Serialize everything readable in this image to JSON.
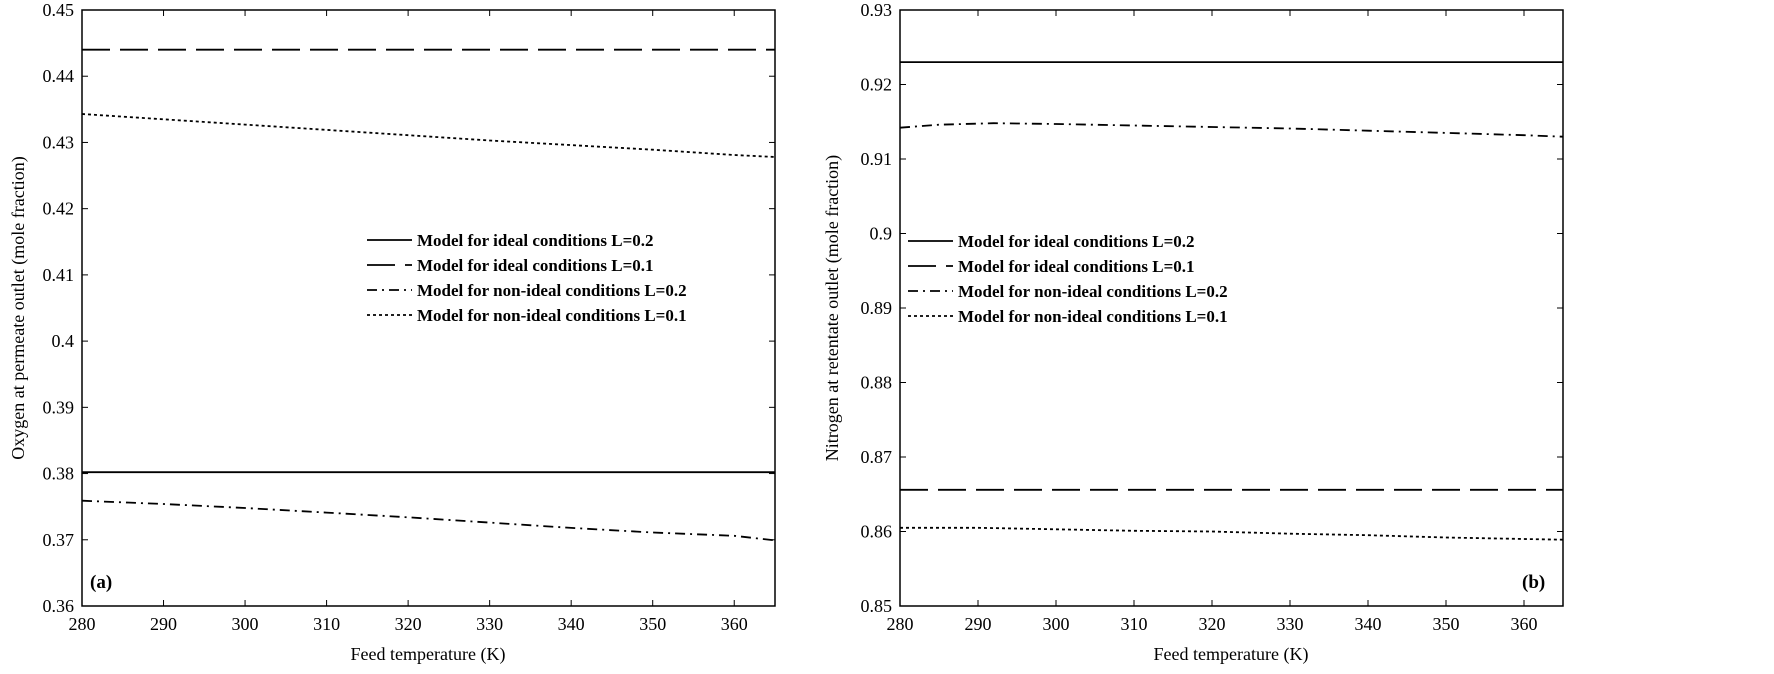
{
  "chart_data": [
    {
      "type": "line",
      "panel_label": "(a)",
      "xlabel": "Feed temperature (K)",
      "ylabel": "Oxygen at permeate outlet (mole fraction)",
      "xlim": [
        280,
        365
      ],
      "ylim": [
        0.36,
        0.45
      ],
      "xticks": [
        280,
        290,
        300,
        310,
        320,
        330,
        340,
        350,
        360
      ],
      "yticks": [
        0.36,
        0.37,
        0.38,
        0.39,
        0.4,
        0.41,
        0.42,
        0.43,
        0.44,
        0.45
      ],
      "xtick_labels": [
        "280",
        "290",
        "300",
        "310",
        "320",
        "330",
        "340",
        "350",
        "360"
      ],
      "ytick_labels": [
        "0.36",
        "0.37",
        "0.38",
        "0.39",
        "0.4",
        "0.41",
        "0.42",
        "0.43",
        "0.44",
        "0.45"
      ],
      "grid": false,
      "legend_position": "center-right",
      "series": [
        {
          "name": "Model for ideal conditions L=0.2",
          "style": "solid",
          "x": [
            280,
            365
          ],
          "y": [
            0.3802,
            0.3802
          ]
        },
        {
          "name": "Model for ideal conditions L=0.1",
          "style": "dashed",
          "x": [
            280,
            365
          ],
          "y": [
            0.444,
            0.444
          ]
        },
        {
          "name": "Model for non-ideal conditions L=0.2",
          "style": "dashdot",
          "x": [
            280,
            290,
            300,
            310,
            320,
            330,
            340,
            350,
            360,
            365
          ],
          "y": [
            0.3759,
            0.3754,
            0.3748,
            0.3741,
            0.3734,
            0.3726,
            0.3718,
            0.3711,
            0.3706,
            0.3699
          ]
        },
        {
          "name": "Model for non-ideal conditions L=0.1",
          "style": "dotted",
          "x": [
            280,
            290,
            300,
            310,
            320,
            330,
            340,
            350,
            360,
            365
          ],
          "y": [
            0.4343,
            0.4335,
            0.4327,
            0.4319,
            0.4311,
            0.4303,
            0.4296,
            0.4289,
            0.4281,
            0.4278
          ]
        }
      ]
    },
    {
      "type": "line",
      "panel_label": "(b)",
      "xlabel": "Feed temperature (K)",
      "ylabel": "Nitrogen at retentate outlet (mole fraction)",
      "xlim": [
        280,
        365
      ],
      "ylim": [
        0.85,
        0.93
      ],
      "xticks": [
        280,
        290,
        300,
        310,
        320,
        330,
        340,
        350,
        360
      ],
      "yticks": [
        0.85,
        0.86,
        0.87,
        0.88,
        0.89,
        0.9,
        0.91,
        0.92,
        0.93
      ],
      "xtick_labels": [
        "280",
        "290",
        "300",
        "310",
        "320",
        "330",
        "340",
        "350",
        "360"
      ],
      "ytick_labels": [
        "0.85",
        "0.86",
        "0.87",
        "0.88",
        "0.89",
        "0.9",
        "0.91",
        "0.92",
        "0.93"
      ],
      "grid": false,
      "legend_position": "center-left",
      "series": [
        {
          "name": "Model for ideal conditions L=0.2",
          "style": "solid",
          "x": [
            280,
            365
          ],
          "y": [
            0.923,
            0.923
          ]
        },
        {
          "name": "Model for ideal conditions L=0.1",
          "style": "dashed",
          "x": [
            280,
            365
          ],
          "y": [
            0.8656,
            0.8656
          ]
        },
        {
          "name": "Model for non-ideal conditions L=0.2",
          "style": "dashdot",
          "x": [
            280,
            285,
            292,
            300,
            310,
            320,
            330,
            340,
            350,
            360,
            365
          ],
          "y": [
            0.9142,
            0.9146,
            0.9148,
            0.9147,
            0.9145,
            0.9143,
            0.9141,
            0.9138,
            0.9135,
            0.9132,
            0.913
          ]
        },
        {
          "name": "Model for non-ideal conditions L=0.1",
          "style": "dotted",
          "x": [
            280,
            290,
            300,
            310,
            320,
            330,
            340,
            350,
            360,
            365
          ],
          "y": [
            0.8605,
            0.8605,
            0.8603,
            0.8601,
            0.86,
            0.8597,
            0.8595,
            0.8592,
            0.859,
            0.8589
          ]
        }
      ]
    }
  ]
}
